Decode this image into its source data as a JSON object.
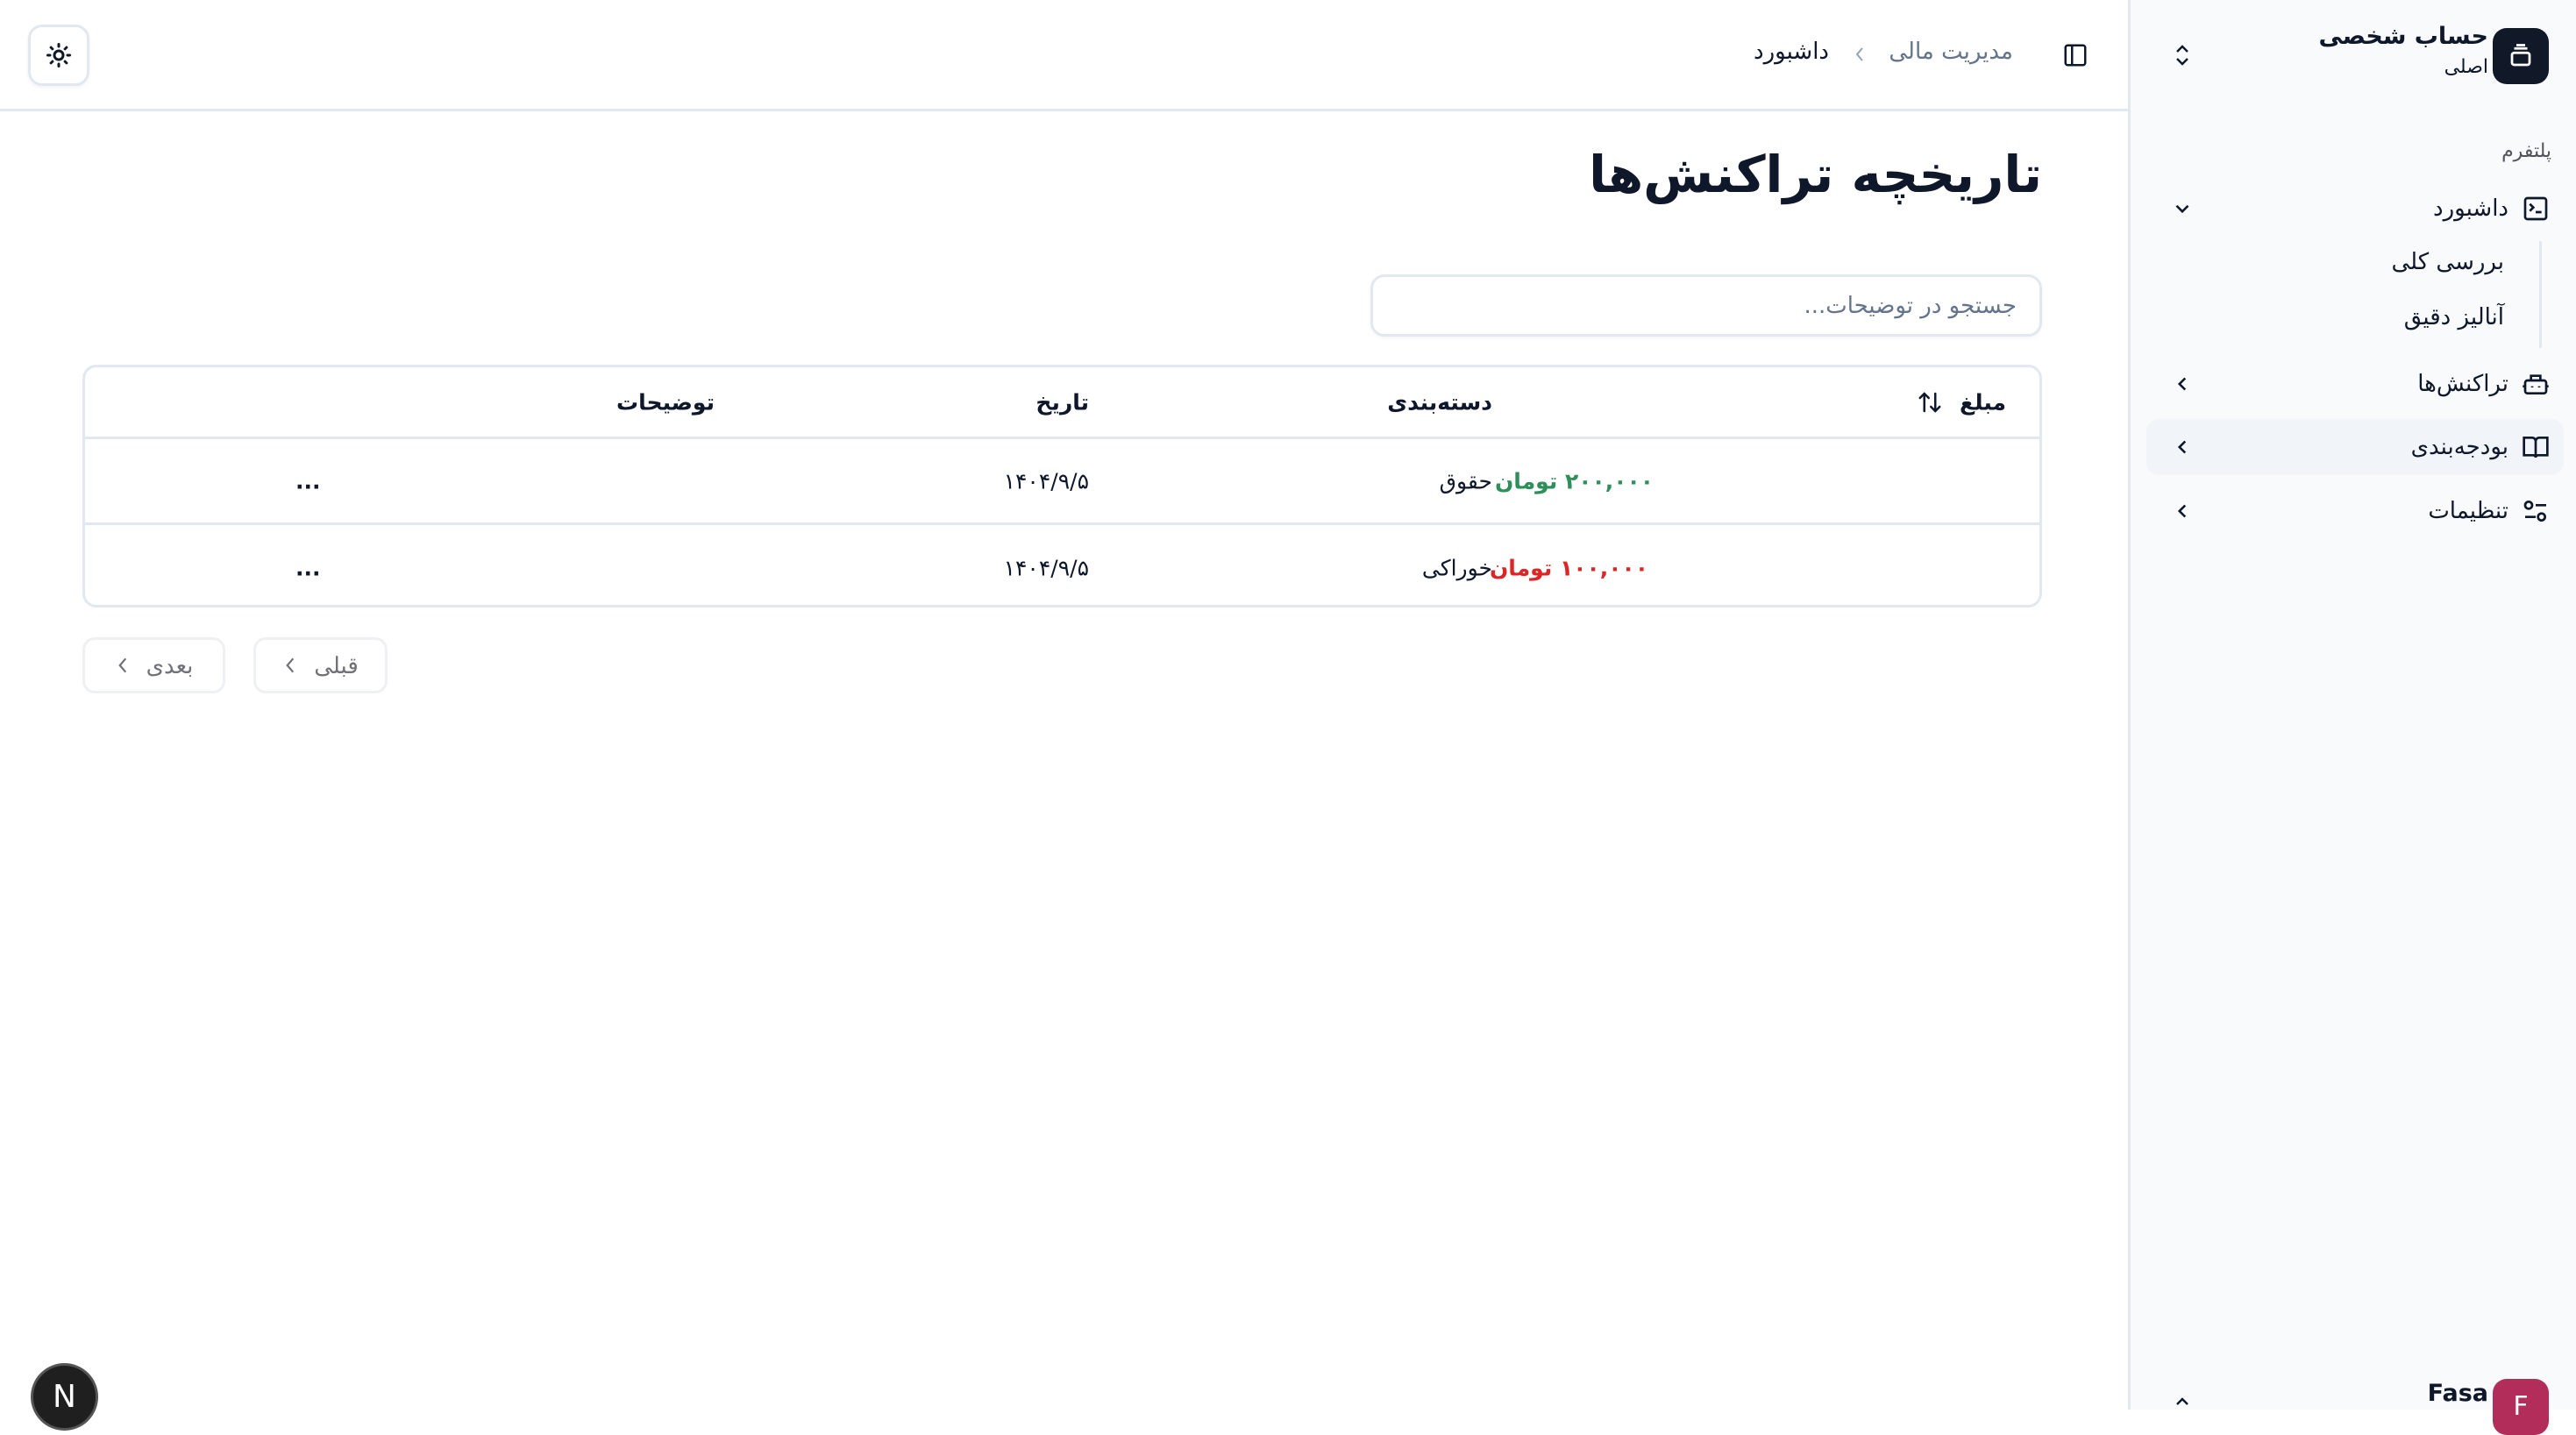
{
  "header": {
    "theme_toggle_icon": "sun-icon",
    "sidebar_toggle_icon": "panel-left-icon",
    "breadcrumb": [
      "مدیریت مالی",
      "داشبورد"
    ]
  },
  "main": {
    "title": "تاریخچه تراکنش‌ها",
    "search": {
      "placeholder": "جستجو در توضیحات...",
      "value": ""
    },
    "table": {
      "columns": [
        "مبلغ",
        "دسته‌بندی",
        "تاریخ",
        "توضیحات"
      ],
      "rows": [
        {
          "amount": "۲۰۰,۰۰۰ تومان",
          "type": "income",
          "category": "حقوق",
          "date": "۱۴۰۴/۹/۵",
          "actions": "..."
        },
        {
          "amount": "۱۰۰,۰۰۰ تومان",
          "type": "expense",
          "category": "خوراکی",
          "date": "۱۴۰۴/۹/۵",
          "actions": "..."
        }
      ]
    },
    "pagination": {
      "prev": "قبلی",
      "next": "بعدی"
    }
  },
  "sidebar": {
    "account": {
      "title": "حساب شخصی",
      "subtitle": "اصلی"
    },
    "group_label": "پلتفرم",
    "items": [
      {
        "label": "داشبورد",
        "icon": "terminal-square-icon",
        "expanded": true,
        "children": [
          "بررسی کلی",
          "آنالیز دقیق"
        ]
      },
      {
        "label": "تراکنش‌ها",
        "icon": "bot-icon"
      },
      {
        "label": "بودجه‌بندی",
        "icon": "book-open-icon",
        "active": true
      },
      {
        "label": "تنظیمات",
        "icon": "settings-sliders-icon"
      }
    ],
    "user": {
      "name": "Fasa",
      "initial": "F"
    }
  },
  "badge": {
    "letter": "N"
  },
  "colors": {
    "income": "#2f8f5b",
    "expense": "#dc2626",
    "avatar": "#b32d5a",
    "account_icon_bg": "#111827"
  }
}
